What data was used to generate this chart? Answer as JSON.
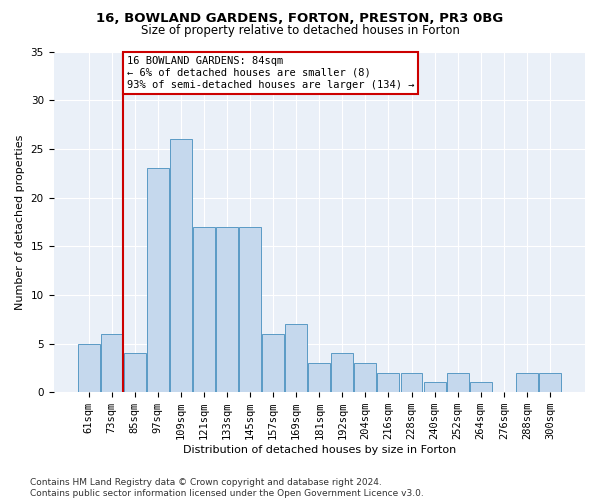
{
  "title1": "16, BOWLAND GARDENS, FORTON, PRESTON, PR3 0BG",
  "title2": "Size of property relative to detached houses in Forton",
  "xlabel": "Distribution of detached houses by size in Forton",
  "ylabel": "Number of detached properties",
  "categories": [
    "61sqm",
    "73sqm",
    "85sqm",
    "97sqm",
    "109sqm",
    "121sqm",
    "133sqm",
    "145sqm",
    "157sqm",
    "169sqm",
    "181sqm",
    "192sqm",
    "204sqm",
    "216sqm",
    "228sqm",
    "240sqm",
    "252sqm",
    "264sqm",
    "276sqm",
    "288sqm",
    "300sqm"
  ],
  "values": [
    5,
    6,
    4,
    23,
    26,
    17,
    17,
    17,
    6,
    7,
    3,
    4,
    3,
    2,
    2,
    1,
    2,
    1,
    0,
    2,
    2
  ],
  "bar_color": "#c5d8ed",
  "bar_edge_color": "#5a9ac5",
  "vline_color": "#cc0000",
  "annotation_text": "16 BOWLAND GARDENS: 84sqm\n← 6% of detached houses are smaller (8)\n93% of semi-detached houses are larger (134) →",
  "annotation_box_color": "white",
  "annotation_box_edge_color": "#cc0000",
  "ylim": [
    0,
    35
  ],
  "yticks": [
    0,
    5,
    10,
    15,
    20,
    25,
    30,
    35
  ],
  "bg_color": "#eaf0f8",
  "grid_color": "white",
  "footer": "Contains HM Land Registry data © Crown copyright and database right 2024.\nContains public sector information licensed under the Open Government Licence v3.0.",
  "title1_fontsize": 9.5,
  "title2_fontsize": 8.5,
  "xlabel_fontsize": 8,
  "ylabel_fontsize": 8,
  "tick_fontsize": 7.5,
  "annotation_fontsize": 7.5,
  "footer_fontsize": 6.5
}
